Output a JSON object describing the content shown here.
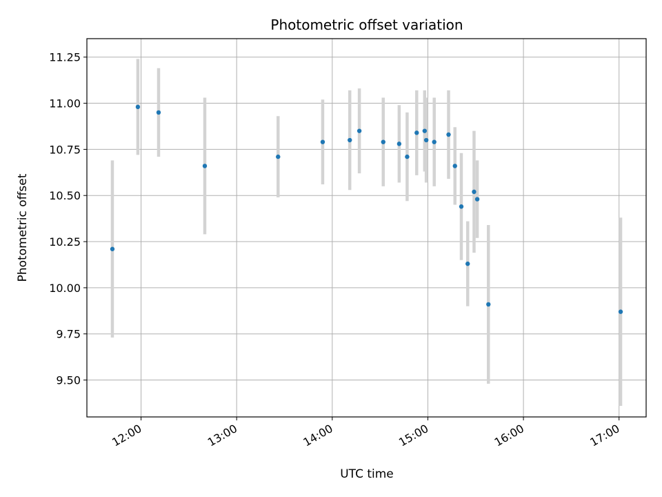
{
  "chart_data": {
    "type": "scatter",
    "title": "Photometric offset variation",
    "xlabel": "UTC time",
    "ylabel": "Photometric offset",
    "x_ticks": [
      "12:00",
      "13:00",
      "14:00",
      "15:00",
      "16:00",
      "17:00"
    ],
    "y_ticks": [
      "9.50",
      "9.75",
      "10.00",
      "10.25",
      "10.50",
      "10.75",
      "11.00",
      "11.25"
    ],
    "xlim": [
      "11:26",
      "17:17"
    ],
    "ylim": [
      9.3,
      11.35
    ],
    "grid": true,
    "marker_color": "#1f77b4",
    "errorbar_color": "#d3d3d3",
    "series": [
      {
        "points": [
          {
            "t": "11:42",
            "y": 10.21,
            "err": 0.48
          },
          {
            "t": "11:58",
            "y": 10.98,
            "err": 0.26
          },
          {
            "t": "12:11",
            "y": 10.95,
            "err": 0.24
          },
          {
            "t": "12:40",
            "y": 10.66,
            "err": 0.37
          },
          {
            "t": "13:26",
            "y": 10.71,
            "err": 0.22
          },
          {
            "t": "13:54",
            "y": 10.79,
            "err": 0.23
          },
          {
            "t": "14:11",
            "y": 10.8,
            "err": 0.27
          },
          {
            "t": "14:17",
            "y": 10.85,
            "err": 0.23
          },
          {
            "t": "14:32",
            "y": 10.79,
            "err": 0.24
          },
          {
            "t": "14:42",
            "y": 10.78,
            "err": 0.21
          },
          {
            "t": "14:47",
            "y": 10.71,
            "err": 0.24
          },
          {
            "t": "14:53",
            "y": 10.84,
            "err": 0.23
          },
          {
            "t": "14:58",
            "y": 10.85,
            "err": 0.22
          },
          {
            "t": "14:59",
            "y": 10.8,
            "err": 0.23
          },
          {
            "t": "15:04",
            "y": 10.79,
            "err": 0.24
          },
          {
            "t": "15:13",
            "y": 10.83,
            "err": 0.24
          },
          {
            "t": "15:17",
            "y": 10.66,
            "err": 0.21
          },
          {
            "t": "15:21",
            "y": 10.44,
            "err": 0.29
          },
          {
            "t": "15:25",
            "y": 10.13,
            "err": 0.23
          },
          {
            "t": "15:29",
            "y": 10.52,
            "err": 0.33
          },
          {
            "t": "15:31",
            "y": 10.48,
            "err": 0.21
          },
          {
            "t": "15:38",
            "y": 9.91,
            "err": 0.43
          },
          {
            "t": "17:01",
            "y": 9.87,
            "err": 0.51
          }
        ]
      }
    ]
  }
}
